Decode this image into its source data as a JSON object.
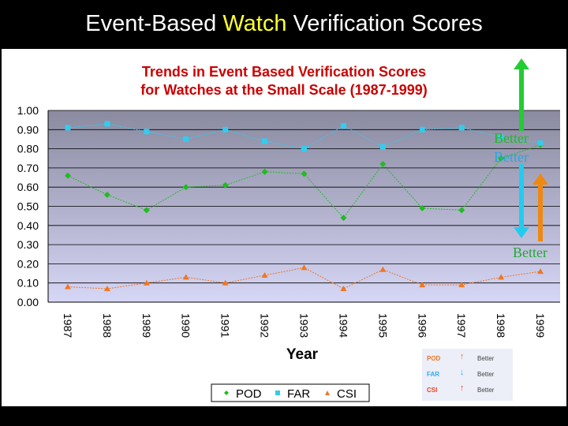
{
  "slide": {
    "title_part1": "Event-Based ",
    "title_highlight": "Watch",
    "title_part2": " Verification Scores"
  },
  "chart_data": {
    "type": "line",
    "title_line1": "Trends in  Event Based Verification Scores",
    "title_line2": "for Watches at the Small Scale (1987-1999)",
    "xlabel": "Year",
    "ylabel": "",
    "categories": [
      "1987",
      "1988",
      "1989",
      "1990",
      "1991",
      "1992",
      "1993",
      "1994",
      "1995",
      "1996",
      "1997",
      "1998",
      "1999"
    ],
    "ylim": [
      0,
      1.0
    ],
    "yticks": [
      "0.00",
      "0.10",
      "0.20",
      "0.30",
      "0.40",
      "0.50",
      "0.60",
      "0.70",
      "0.80",
      "0.90",
      "1.00"
    ],
    "grid": true,
    "legend_position": "bottom",
    "series": [
      {
        "name": "POD",
        "color": "#22bb22",
        "marker": "diamond",
        "values": [
          0.66,
          0.56,
          0.48,
          0.6,
          0.61,
          0.68,
          0.67,
          0.44,
          0.72,
          0.49,
          0.48,
          0.75,
          0.82
        ]
      },
      {
        "name": "FAR",
        "color": "#33ccee",
        "marker": "square",
        "values": [
          0.91,
          0.93,
          0.89,
          0.85,
          0.9,
          0.84,
          0.8,
          0.92,
          0.81,
          0.9,
          0.91,
          0.86,
          0.83
        ]
      },
      {
        "name": "CSI",
        "color": "#ee7722",
        "marker": "triangle",
        "values": [
          0.08,
          0.07,
          0.1,
          0.13,
          0.1,
          0.14,
          0.18,
          0.07,
          0.17,
          0.09,
          0.09,
          0.13,
          0.16
        ]
      }
    ]
  },
  "annotations": {
    "better_pod": "Better",
    "better_far": "Better",
    "better_csi": "Better"
  },
  "small_legend": [
    {
      "metric": "POD",
      "color": "#ee7722",
      "arrow": "↑",
      "text": "Better"
    },
    {
      "metric": "FAR",
      "color": "#33aaee",
      "arrow": "↓",
      "text": "Better"
    },
    {
      "metric": "CSI",
      "color": "#ee4422",
      "arrow": "↑",
      "text": "Better"
    }
  ]
}
